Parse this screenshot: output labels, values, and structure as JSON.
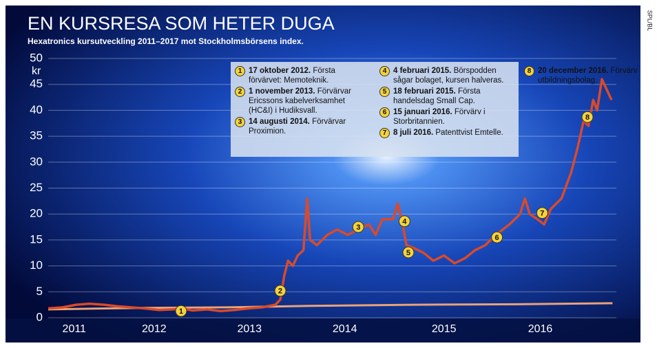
{
  "chart_data": {
    "type": "line",
    "title": "EN KURSRESA SOM HETER DUGA",
    "subtitle": "Hexatronics kursutveckling 2011–2017 mot Stockholmsbörsens index.",
    "credit": "SPL/BL",
    "y_label": "kr",
    "xlim": [
      2011.41,
      2017.31
    ],
    "xticks": [
      {
        "value": 2011.68,
        "label": "2011"
      },
      {
        "value": 2012.51,
        "label": "2012"
      },
      {
        "value": 2013.5,
        "label": "2013"
      },
      {
        "value": 2014.49,
        "label": "2014"
      },
      {
        "value": 2015.52,
        "label": "2015"
      },
      {
        "value": 2016.52,
        "label": "2016"
      }
    ],
    "ylim": [
      0,
      50
    ],
    "yticks": [
      0,
      5,
      10,
      15,
      20,
      25,
      30,
      35,
      40,
      45,
      50
    ],
    "grid": true,
    "series": [
      {
        "color": "#d94a2b",
        "x": [
          2011.41,
          2011.56,
          2011.7,
          2011.84,
          2011.99,
          2012.13,
          2012.27,
          2012.41,
          2012.56,
          2012.7,
          2012.79,
          2012.91,
          2013.06,
          2013.2,
          2013.34,
          2013.49,
          2013.63,
          2013.77,
          2013.82,
          2013.86,
          2013.9,
          2013.95,
          2014.0,
          2014.06,
          2014.1,
          2014.13,
          2014.2,
          2014.31,
          2014.41,
          2014.52,
          2014.63,
          2014.74,
          2014.81,
          2014.88,
          2014.99,
          2015.04,
          2015.09,
          2015.13,
          2015.2,
          2015.31,
          2015.41,
          2015.52,
          2015.63,
          2015.74,
          2015.84,
          2015.95,
          2016.06,
          2016.2,
          2016.31,
          2016.36,
          2016.41,
          2016.49,
          2016.56,
          2016.63,
          2016.74,
          2016.84,
          2016.91,
          2016.97,
          2017.02,
          2017.07,
          2017.11,
          2017.16,
          2017.21,
          2017.26
        ],
        "values": [
          1.8,
          2.0,
          2.5,
          2.7,
          2.5,
          2.2,
          2.0,
          1.8,
          1.5,
          1.6,
          1.8,
          1.4,
          1.6,
          1.3,
          1.5,
          1.8,
          2.0,
          2.5,
          3.5,
          8,
          11,
          10,
          12,
          13,
          23,
          15,
          14,
          16,
          17,
          16,
          17,
          18,
          16,
          19,
          19,
          22,
          18,
          14,
          13.5,
          12.5,
          11,
          12,
          10.5,
          11.5,
          13,
          14,
          16,
          18,
          20,
          23,
          20,
          19,
          18,
          21,
          23,
          28,
          33,
          38,
          37,
          42,
          40,
          46,
          44,
          42
        ]
      },
      {
        "color": "#e9a27a",
        "x": [
          2011.41,
          2012.34,
          2013.27,
          2014.13,
          2015.2,
          2016.27,
          2017.27
        ],
        "values": [
          1.6,
          1.9,
          2.0,
          2.3,
          2.5,
          2.6,
          2.8
        ]
      }
    ],
    "events": [
      {
        "number": "1",
        "date": "17 oktober 2012.",
        "text": "Första förvärvet: Memoteknik.",
        "x": 2012.79,
        "y": 1.3
      },
      {
        "number": "2",
        "date": "1 november 2013.",
        "text": "Förvärvar Ericssons kabelverksamhet (HC&I) i Hudiksvall.",
        "x": 2013.82,
        "y": 5.2
      },
      {
        "number": "3",
        "date": "14 augusti 2014.",
        "text": "Förvärvar Proximion.",
        "x": 2014.63,
        "y": 17.5
      },
      {
        "number": "4",
        "date": "4 februari 2015.",
        "text": "Börspodden sågar bolaget, kursen halveras.",
        "x": 2015.11,
        "y": 18.6
      },
      {
        "number": "5",
        "date": "18 februari 2015.",
        "text": "Första handelsdag Small Cap.",
        "x": 2015.15,
        "y": 12.6
      },
      {
        "number": "6",
        "date": "15 januari 2016.",
        "text": "Förvärv i Storbritannien.",
        "x": 2016.07,
        "y": 15.5
      },
      {
        "number": "7",
        "date": "8 juli 2016.",
        "text": "Patenttvist Emtelle.",
        "x": 2016.54,
        "y": 20.2
      },
      {
        "number": "8",
        "date": "20 december 2016.",
        "text": "Förvärv utbildningsbolag.",
        "x": 2017.01,
        "y": 38.7
      }
    ]
  }
}
